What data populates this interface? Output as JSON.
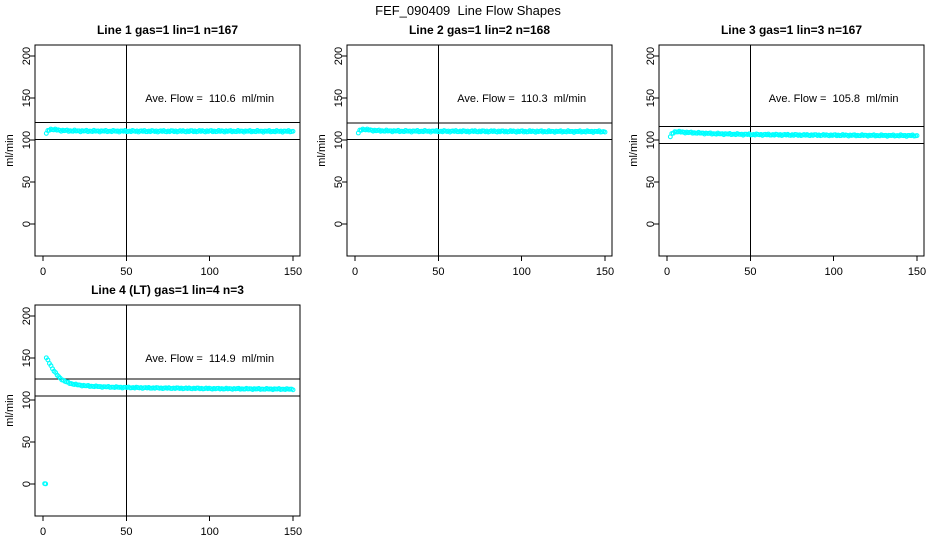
{
  "page": {
    "title": "FEF_090409  Line Flow Shapes"
  },
  "colors": {
    "points": "#00FFFF",
    "axis": "#000000",
    "background": "#FFFFFF",
    "text": "#000000"
  },
  "axes": {
    "x_ticks": [
      0,
      50,
      100,
      150
    ],
    "y_ticks": [
      0,
      50,
      100,
      150,
      200
    ],
    "ylabel": "ml/min",
    "xlabel": "",
    "xlim": [
      0,
      150
    ],
    "ylim": [
      0,
      200
    ],
    "grid": "off"
  },
  "chart_data": [
    {
      "type": "scatter",
      "title": "Line 1 gas=1 lin=1 n=167",
      "annotation": "Ave. Flow =  110.6  ml/min",
      "annotation_pos": {
        "x": 100,
        "y": 150
      },
      "ave_flow_ml_min": 110.6,
      "n": 167,
      "marker": "open-circle",
      "ref_lines_y": [
        120.6,
        100.6
      ],
      "ref_line_x": 50,
      "x_range": [
        2,
        150
      ],
      "band_halfwidth": 1.0,
      "profile": [
        [
          2,
          107.5
        ],
        [
          3,
          111
        ],
        [
          4,
          112.5
        ],
        [
          5,
          113
        ],
        [
          6,
          112.5
        ],
        [
          8,
          112
        ],
        [
          10,
          111.5
        ],
        [
          15,
          111
        ],
        [
          20,
          110.8
        ],
        [
          30,
          110.6
        ],
        [
          50,
          110.5
        ],
        [
          75,
          110.4
        ],
        [
          100,
          110.5
        ],
        [
          125,
          110.4
        ],
        [
          150,
          110.3
        ]
      ],
      "outliers": []
    },
    {
      "type": "scatter",
      "title": "Line 2 gas=1 lin=2 n=168",
      "annotation": "Ave. Flow =  110.3  ml/min",
      "annotation_pos": {
        "x": 100,
        "y": 150
      },
      "ave_flow_ml_min": 110.3,
      "n": 168,
      "marker": "open-circle",
      "ref_lines_y": [
        120.3,
        100.3
      ],
      "ref_line_x": 50,
      "x_range": [
        2,
        150
      ],
      "band_halfwidth": 1.0,
      "profile": [
        [
          2,
          108
        ],
        [
          3,
          111.5
        ],
        [
          4,
          112.5
        ],
        [
          5,
          113
        ],
        [
          6,
          112.5
        ],
        [
          8,
          112
        ],
        [
          12,
          111.2
        ],
        [
          20,
          110.8
        ],
        [
          30,
          110.5
        ],
        [
          50,
          110.4
        ],
        [
          75,
          110.3
        ],
        [
          100,
          110.2
        ],
        [
          125,
          110.1
        ],
        [
          150,
          110
        ]
      ],
      "outliers": []
    },
    {
      "type": "scatter",
      "title": "Line 3 gas=1 lin=3 n=167",
      "annotation": "Ave. Flow =  105.8  ml/min",
      "annotation_pos": {
        "x": 100,
        "y": 150
      },
      "ave_flow_ml_min": 105.8,
      "n": 167,
      "marker": "open-circle",
      "ref_lines_y": [
        115.8,
        95.8
      ],
      "ref_line_x": 50,
      "x_range": [
        2,
        150
      ],
      "band_halfwidth": 0.9,
      "profile": [
        [
          2,
          103.5
        ],
        [
          3,
          107.5
        ],
        [
          4,
          109
        ],
        [
          5,
          110
        ],
        [
          6,
          110
        ],
        [
          8,
          109.5
        ],
        [
          12,
          109
        ],
        [
          20,
          108.2
        ],
        [
          30,
          107.4
        ],
        [
          50,
          106.5
        ],
        [
          75,
          106
        ],
        [
          100,
          105.7
        ],
        [
          125,
          105.4
        ],
        [
          150,
          105.2
        ]
      ],
      "outliers": []
    },
    {
      "type": "scatter",
      "title": "Line 4 (LT) gas=1 lin=4 n=3",
      "annotation": "Ave. Flow =  114.9  ml/min",
      "annotation_pos": {
        "x": 100,
        "y": 150
      },
      "ave_flow_ml_min": 114.9,
      "n": 3,
      "marker": "open-circle",
      "ref_lines_y": [
        124.9,
        104.9
      ],
      "ref_line_x": 50,
      "x_range": [
        2,
        150
      ],
      "band_halfwidth": 0.7,
      "profile": [
        [
          2,
          150
        ],
        [
          3,
          147
        ],
        [
          4,
          143.5
        ],
        [
          5,
          140
        ],
        [
          6,
          136.5
        ],
        [
          7,
          133.5
        ],
        [
          8,
          131
        ],
        [
          9,
          128.5
        ],
        [
          10,
          126.5
        ],
        [
          12,
          123.5
        ],
        [
          14,
          121.5
        ],
        [
          16,
          120
        ],
        [
          18,
          119
        ],
        [
          20,
          118.2
        ],
        [
          25,
          117
        ],
        [
          30,
          116.3
        ],
        [
          35,
          115.8
        ],
        [
          40,
          115.4
        ],
        [
          50,
          114.9
        ],
        [
          60,
          114.5
        ],
        [
          70,
          114.2
        ],
        [
          80,
          114
        ],
        [
          90,
          113.8
        ],
        [
          100,
          113.6
        ],
        [
          110,
          113.4
        ],
        [
          120,
          113.3
        ],
        [
          130,
          113.1
        ],
        [
          140,
          113
        ],
        [
          150,
          112.8
        ]
      ],
      "outliers": [
        [
          1,
          0.4
        ],
        [
          1.6,
          0.2
        ]
      ]
    }
  ]
}
